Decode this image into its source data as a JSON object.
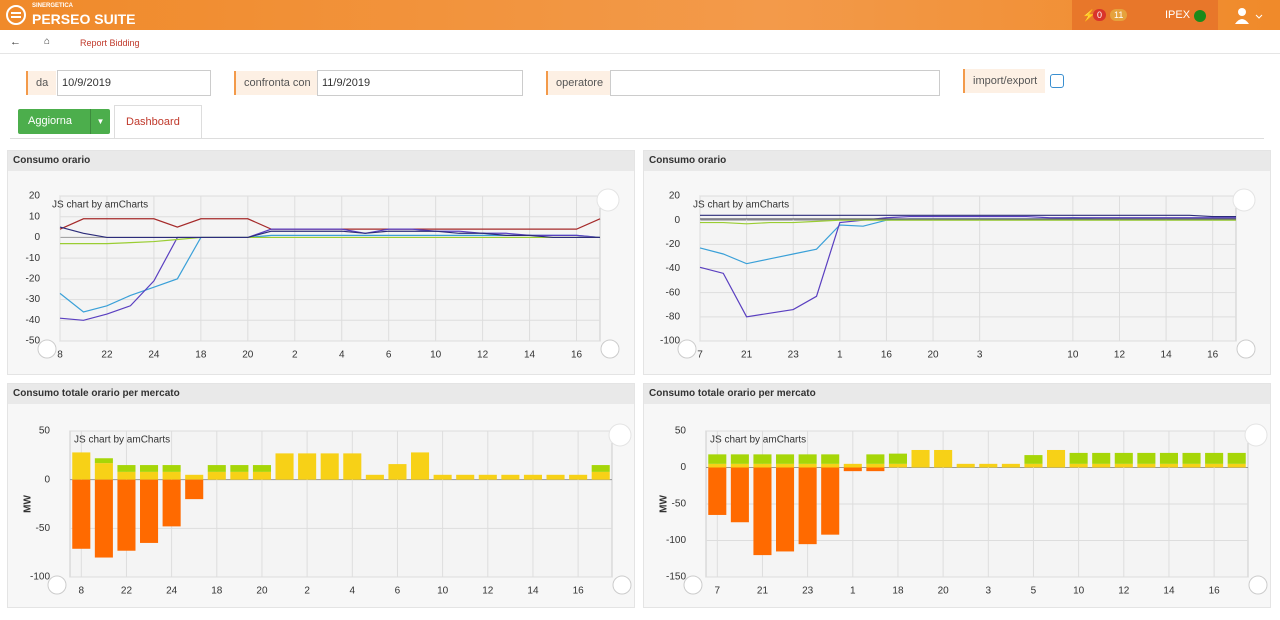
{
  "header": {
    "brand_small": "SINERGETICA",
    "brand": "PERSEO SUITE",
    "badge_red": "0",
    "badge_orange": "11",
    "market": "IPEX"
  },
  "breadcrumb": {
    "page": "Report Bidding"
  },
  "filters": {
    "from_label": "da",
    "from_value": "10/9/2019",
    "compare_label": "confronta con",
    "compare_value": "11/9/2019",
    "operator_label": "operatore",
    "import_export_label": "import/export"
  },
  "toolbar": {
    "refresh": "Aggiorna",
    "tab": "Dashboard"
  },
  "chart_data": [
    {
      "type": "line",
      "title": "Consumo orario",
      "credit": "JS chart by amCharts",
      "categories": [
        "8",
        null,
        "22",
        null,
        "24",
        null,
        "18",
        null,
        "20",
        null,
        "2",
        null,
        "4",
        null,
        "6",
        null,
        "10",
        null,
        "12",
        null,
        "14",
        null,
        "16",
        null
      ],
      "series": [
        {
          "color": "#a52a2a",
          "values": [
            4,
            9,
            9,
            9,
            9,
            5,
            9,
            9,
            9,
            4,
            4,
            4,
            4,
            4,
            4,
            4,
            4,
            4,
            4,
            4,
            4,
            4,
            4,
            9
          ]
        },
        {
          "color": "#3aa0d8",
          "values": [
            -27,
            -36,
            -33,
            -28,
            -24,
            -20,
            0,
            0,
            0,
            1,
            1,
            1,
            1,
            1,
            1,
            1,
            1,
            1,
            1,
            1,
            1,
            1,
            1,
            0
          ]
        },
        {
          "color": "#5a3fc0",
          "values": [
            -39,
            -40,
            -37,
            -33,
            -21,
            0,
            0,
            0,
            0,
            4,
            4,
            4,
            4,
            2,
            4,
            4,
            3,
            3,
            2,
            2,
            1,
            1,
            1,
            0
          ]
        },
        {
          "color": "#9acd32",
          "values": [
            -3,
            -3,
            -3,
            -2.5,
            -2,
            -1,
            0,
            0,
            0,
            0,
            0,
            0,
            0,
            0,
            0,
            0,
            0,
            0,
            0,
            0,
            0,
            0,
            0,
            0
          ]
        },
        {
          "color": "#2c2c7a",
          "values": [
            5,
            2,
            0,
            0,
            0,
            0,
            0,
            0,
            0,
            3,
            3,
            3,
            3,
            2,
            3,
            3,
            3,
            2,
            2,
            1,
            1,
            0,
            0,
            0
          ]
        }
      ],
      "ylim": [
        -50,
        20
      ],
      "yticks": [
        20,
        10,
        0,
        -10,
        -20,
        -30,
        -40,
        -50
      ],
      "grid": true
    },
    {
      "type": "line",
      "title": "Consumo orario",
      "credit": "JS chart by amCharts",
      "categories": [
        "7",
        null,
        "21",
        null,
        "23",
        null,
        "1",
        null,
        "16",
        null,
        "20",
        null,
        "3",
        null,
        null,
        null,
        "10",
        null,
        "12",
        null,
        "14",
        null,
        "16",
        null
      ],
      "series": [
        {
          "color": "#3aa0d8",
          "values": [
            -23,
            -28,
            -36,
            -32,
            -28,
            -24,
            -4,
            -5,
            0,
            1,
            1,
            1,
            1,
            1,
            1,
            1,
            2,
            1,
            1,
            1,
            1,
            1,
            1,
            1
          ]
        },
        {
          "color": "#5a3fc0",
          "values": [
            -39,
            -44,
            -80,
            -77,
            -74,
            -63,
            -2,
            0,
            2,
            3,
            3,
            3,
            3,
            3,
            3,
            2,
            2,
            2,
            2,
            2,
            2,
            2,
            2,
            2
          ]
        },
        {
          "color": "#9acd32",
          "values": [
            -2,
            -2,
            -3,
            -2,
            -2,
            -1,
            0,
            0,
            0,
            0,
            0,
            0,
            0,
            0,
            0,
            0,
            0,
            0,
            0,
            0,
            0,
            0,
            0,
            0
          ]
        },
        {
          "color": "#2c2c7a",
          "values": [
            4,
            4,
            4,
            4,
            4,
            4,
            4,
            4,
            4,
            4,
            4,
            4,
            4,
            4,
            4,
            4,
            4,
            4,
            4,
            4,
            4,
            4,
            3,
            3
          ]
        },
        {
          "color": "#555566",
          "values": [
            1,
            1,
            1,
            1,
            1,
            1,
            1,
            1,
            1,
            1,
            1,
            1,
            1,
            1,
            1,
            1,
            1,
            1,
            1,
            1,
            1,
            1,
            1,
            1
          ]
        }
      ],
      "ylim": [
        -100,
        20
      ],
      "yticks": [
        20,
        0,
        -20,
        -40,
        -60,
        -80,
        -100
      ],
      "grid": true
    },
    {
      "type": "bar",
      "stacked": true,
      "title": "Consumo totale orario per mercato",
      "credit": "JS chart by amCharts",
      "ylabel": "MW",
      "categories": [
        "8",
        null,
        "22",
        null,
        "24",
        null,
        "18",
        null,
        "20",
        null,
        "2",
        null,
        "4",
        null,
        "6",
        null,
        "10",
        null,
        "12",
        null,
        "14",
        null,
        "16",
        null
      ],
      "series": [
        {
          "color": "#f7d117",
          "values": [
            28,
            17,
            8,
            8,
            8,
            5,
            8,
            8,
            8,
            27,
            27,
            27,
            27,
            5,
            16,
            28,
            5,
            5,
            5,
            5,
            5,
            5,
            5,
            8
          ]
        },
        {
          "color": "#a6d608",
          "values": [
            0,
            5,
            7,
            7,
            7,
            0,
            7,
            7,
            7,
            0,
            0,
            0,
            0,
            0,
            0,
            0,
            0,
            0,
            0,
            0,
            0,
            0,
            0,
            7
          ]
        },
        {
          "color": "#ff6a00",
          "values": [
            -71,
            -80,
            -73,
            -65,
            -48,
            -20,
            0,
            0,
            0,
            0,
            0,
            0,
            0,
            0,
            0,
            0,
            0,
            0,
            0,
            0,
            0,
            0,
            0,
            0
          ]
        }
      ],
      "ylim": [
        -100,
        50
      ],
      "yticks": [
        50,
        0,
        -50,
        -100
      ],
      "grid": true
    },
    {
      "type": "bar",
      "stacked": true,
      "title": "Consumo totale orario per mercato",
      "credit": "JS chart by amCharts",
      "ylabel": "MW",
      "categories": [
        "7",
        null,
        "21",
        null,
        "23",
        null,
        "1",
        null,
        "18",
        null,
        "20",
        null,
        "3",
        null,
        "5",
        null,
        "10",
        null,
        "12",
        null,
        "14",
        null,
        "16",
        null
      ],
      "series": [
        {
          "color": "#f7d117",
          "values": [
            5,
            5,
            5,
            5,
            5,
            5,
            5,
            5,
            5,
            24,
            24,
            5,
            5,
            5,
            5,
            24,
            5,
            5,
            5,
            5,
            5,
            5,
            5,
            5
          ]
        },
        {
          "color": "#a6d608",
          "values": [
            13,
            13,
            13,
            13,
            13,
            13,
            0,
            13,
            14,
            0,
            0,
            0,
            0,
            0,
            12,
            0,
            15,
            15,
            15,
            15,
            15,
            15,
            15,
            15
          ]
        },
        {
          "color": "#ff6a00",
          "values": [
            -65,
            -75,
            -120,
            -115,
            -105,
            -92,
            -5,
            -5,
            0,
            0,
            0,
            0,
            0,
            0,
            0,
            0,
            0,
            0,
            0,
            0,
            0,
            0,
            0,
            0
          ]
        }
      ],
      "ylim": [
        -150,
        50
      ],
      "yticks": [
        50,
        0,
        -50,
        -100,
        -150
      ],
      "grid": true
    }
  ]
}
